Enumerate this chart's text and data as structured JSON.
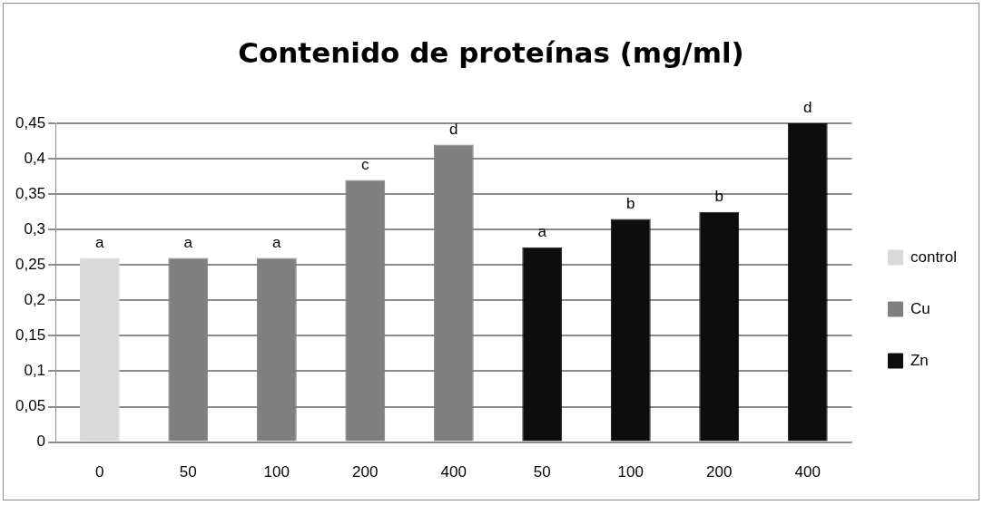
{
  "chart_data": {
    "type": "bar",
    "title": "Contenido de proteínas (mg/ml)",
    "categories": [
      "0",
      "50",
      "100",
      "200",
      "400",
      "50",
      "100",
      "200",
      "400"
    ],
    "series": [
      {
        "name": "control",
        "color": "#d9d9d9",
        "values": [
          0.26,
          null,
          null,
          null,
          null,
          null,
          null,
          null,
          null
        ],
        "value_labels": [
          "a",
          null,
          null,
          null,
          null,
          null,
          null,
          null,
          null
        ]
      },
      {
        "name": "Cu",
        "color": "#7f7f7f",
        "values": [
          null,
          0.26,
          0.26,
          0.37,
          0.42,
          null,
          null,
          null,
          null
        ],
        "value_labels": [
          null,
          "a",
          "a",
          "c",
          "d",
          null,
          null,
          null,
          null
        ]
      },
      {
        "name": "Zn",
        "color": "#0d0d0d",
        "values": [
          null,
          null,
          null,
          null,
          null,
          0.275,
          0.315,
          0.325,
          0.45
        ],
        "value_labels": [
          null,
          null,
          null,
          null,
          null,
          "a",
          "b",
          "b",
          "d"
        ]
      }
    ],
    "ylim": [
      0,
      0.45
    ],
    "yticks": [
      {
        "value": 0,
        "label": "0"
      },
      {
        "value": 0.05,
        "label": "0,05"
      },
      {
        "value": 0.1,
        "label": "0,1"
      },
      {
        "value": 0.15,
        "label": "0,15"
      },
      {
        "value": 0.2,
        "label": "0,2"
      },
      {
        "value": 0.25,
        "label": "0,25"
      },
      {
        "value": 0.3,
        "label": "0,3"
      },
      {
        "value": 0.35,
        "label": "0,35"
      },
      {
        "value": 0.4,
        "label": "0,4"
      },
      {
        "value": 0.45,
        "label": "0,45"
      }
    ],
    "grid": "y",
    "legend": "right"
  }
}
